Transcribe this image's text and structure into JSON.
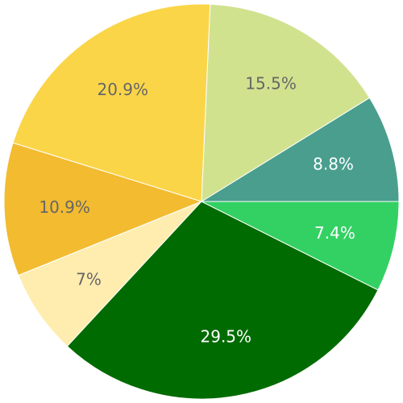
{
  "chart_data": {
    "type": "pie",
    "slices": [
      {
        "label": "8.8%",
        "value": 8.8,
        "color": "#4a9e8e",
        "text_color": "#ffffff"
      },
      {
        "label": "15.5%",
        "value": 15.5,
        "color": "#d1e28f",
        "text_color": "#666666"
      },
      {
        "label": "20.9%",
        "value": 20.9,
        "color": "#fbd548",
        "text_color": "#666666"
      },
      {
        "label": "10.9%",
        "value": 10.9,
        "color": "#f2bb30",
        "text_color": "#666666"
      },
      {
        "label": "7%",
        "value": 7.0,
        "color": "#ffedb0",
        "text_color": "#666666"
      },
      {
        "label": "29.5%",
        "value": 29.5,
        "color": "#006b00",
        "text_color": "#ffffff"
      },
      {
        "label": "7.4%",
        "value": 7.4,
        "color": "#33d163",
        "text_color": "#ffffff"
      }
    ]
  }
}
